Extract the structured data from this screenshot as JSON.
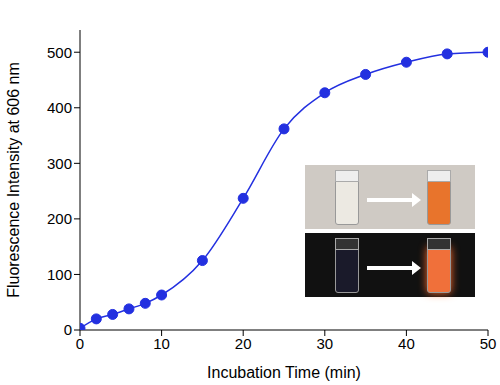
{
  "chart_data": {
    "type": "line",
    "x": [
      0,
      2,
      4,
      6,
      8,
      10,
      15,
      20,
      25,
      30,
      35,
      40,
      45,
      50
    ],
    "values": [
      3,
      20,
      28,
      38,
      48,
      63,
      125,
      237,
      362,
      427,
      460,
      482,
      497,
      500
    ],
    "color": "#2330e0",
    "marker": "circle",
    "xlabel": "Incubation Time (min)",
    "ylabel": "Fluorescence Intensity at 606 nm",
    "xlim": [
      0,
      50
    ],
    "xticks": [
      0,
      10,
      20,
      30,
      40,
      50
    ],
    "ylim": [
      0,
      540
    ],
    "yticks": [
      0,
      100,
      200,
      300,
      400,
      500
    ],
    "grid": false
  }
}
